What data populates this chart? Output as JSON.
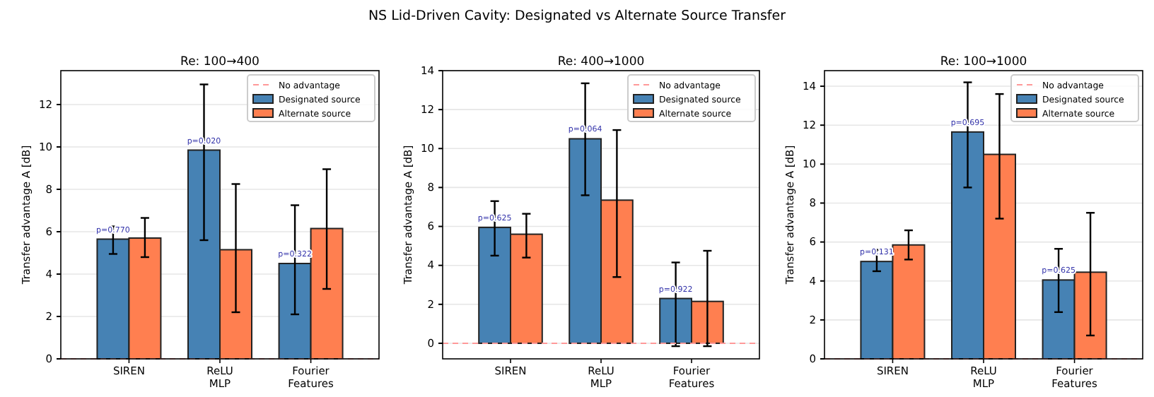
{
  "chart_data": [
    {
      "type": "bar",
      "title": "Re: 100→400",
      "ylabel": "Transfer advantage A [dB]",
      "categories": [
        "SIREN",
        "ReLU\nMLP",
        "Fourier\nFeatures"
      ],
      "ylim": [
        0,
        13.6
      ],
      "yticks": [
        0,
        2,
        4,
        6,
        8,
        10,
        12
      ],
      "grid": "y",
      "legend": "top right",
      "series": [
        {
          "name": "Designated source",
          "color": "#4682b4",
          "values": [
            5.65,
            9.85,
            4.5
          ],
          "errors": [
            [
              4.95,
              6.25
            ],
            [
              5.6,
              12.95
            ],
            [
              2.1,
              7.25
            ]
          ]
        },
        {
          "name": "Alternate source",
          "color": "#ff7f50",
          "values": [
            5.7,
            5.15,
            6.15
          ],
          "errors": [
            [
              4.8,
              6.65
            ],
            [
              2.2,
              8.25
            ],
            [
              3.3,
              8.95
            ]
          ]
        }
      ],
      "ref_lines": [
        {
          "axis": "y",
          "value": 0,
          "label": "No advantage",
          "color": "#ff9999",
          "line_style": "dashed"
        }
      ],
      "annotations": [
        "NS Lid-Driven Cavity: Designated vs Alternate Source Transfer",
        {
          "text": "p=0.770",
          "x": "SIREN",
          "y": 5.65
        },
        {
          "text": "p=0.020",
          "x": "ReLU\nMLP",
          "y": 9.85
        },
        {
          "text": "p=0.322",
          "x": "Fourier\nFeatures",
          "y": 4.5
        }
      ]
    },
    {
      "type": "bar",
      "title": "Re: 400→1000",
      "ylabel": "Transfer advantage A [dB]",
      "categories": [
        "SIREN",
        "ReLU\nMLP",
        "Fourier\nFeatures"
      ],
      "ylim": [
        -0.8,
        14
      ],
      "yticks": [
        0,
        2,
        4,
        6,
        8,
        10,
        12,
        14
      ],
      "grid": "y",
      "legend": "top right",
      "series": [
        {
          "name": "Designated source",
          "color": "#4682b4",
          "values": [
            5.95,
            10.5,
            2.3
          ],
          "errors": [
            [
              4.5,
              7.3
            ],
            [
              7.6,
              13.35
            ],
            [
              -0.15,
              4.15
            ]
          ]
        },
        {
          "name": "Alternate source",
          "color": "#ff7f50",
          "values": [
            5.6,
            7.35,
            2.15
          ],
          "errors": [
            [
              4.4,
              6.65
            ],
            [
              3.4,
              10.95
            ],
            [
              -0.15,
              4.75
            ]
          ]
        }
      ],
      "ref_lines": [
        {
          "axis": "y",
          "value": 0,
          "label": "No advantage",
          "color": "#ff9999",
          "line_style": "dashed"
        }
      ],
      "annotations": [
        {
          "text": "p=0.625",
          "x": "SIREN",
          "y": 5.95
        },
        {
          "text": "p=0.064",
          "x": "ReLU\nMLP",
          "y": 10.5
        },
        {
          "text": "p=0.922",
          "x": "Fourier\nFeatures",
          "y": 2.3
        }
      ]
    },
    {
      "type": "bar",
      "title": "Re: 100→1000",
      "ylabel": "Transfer advantage A [dB]",
      "categories": [
        "SIREN",
        "ReLU\nMLP",
        "Fourier\nFeatures"
      ],
      "ylim": [
        0,
        14.8
      ],
      "yticks": [
        0,
        2,
        4,
        6,
        8,
        10,
        12,
        14
      ],
      "grid": "y",
      "legend": "top right",
      "series": [
        {
          "name": "Designated source",
          "color": "#4682b4",
          "values": [
            5.0,
            11.65,
            4.05
          ],
          "errors": [
            [
              4.5,
              5.6
            ],
            [
              8.8,
              14.2
            ],
            [
              2.4,
              5.65
            ]
          ]
        },
        {
          "name": "Alternate source",
          "color": "#ff7f50",
          "values": [
            5.85,
            10.5,
            4.45
          ],
          "errors": [
            [
              5.1,
              6.6
            ],
            [
              7.2,
              13.6
            ],
            [
              1.2,
              7.5
            ]
          ]
        }
      ],
      "ref_lines": [
        {
          "axis": "y",
          "value": 0,
          "label": "No advantage",
          "color": "#ff9999",
          "line_style": "dashed"
        }
      ],
      "annotations": [
        {
          "text": "p=0.131",
          "x": "SIREN",
          "y": 5.0
        },
        {
          "text": "p=0.695",
          "x": "ReLU\nMLP",
          "y": 11.65
        },
        {
          "text": "p=0.625",
          "x": "Fourier\nFeatures",
          "y": 4.05
        }
      ]
    }
  ]
}
